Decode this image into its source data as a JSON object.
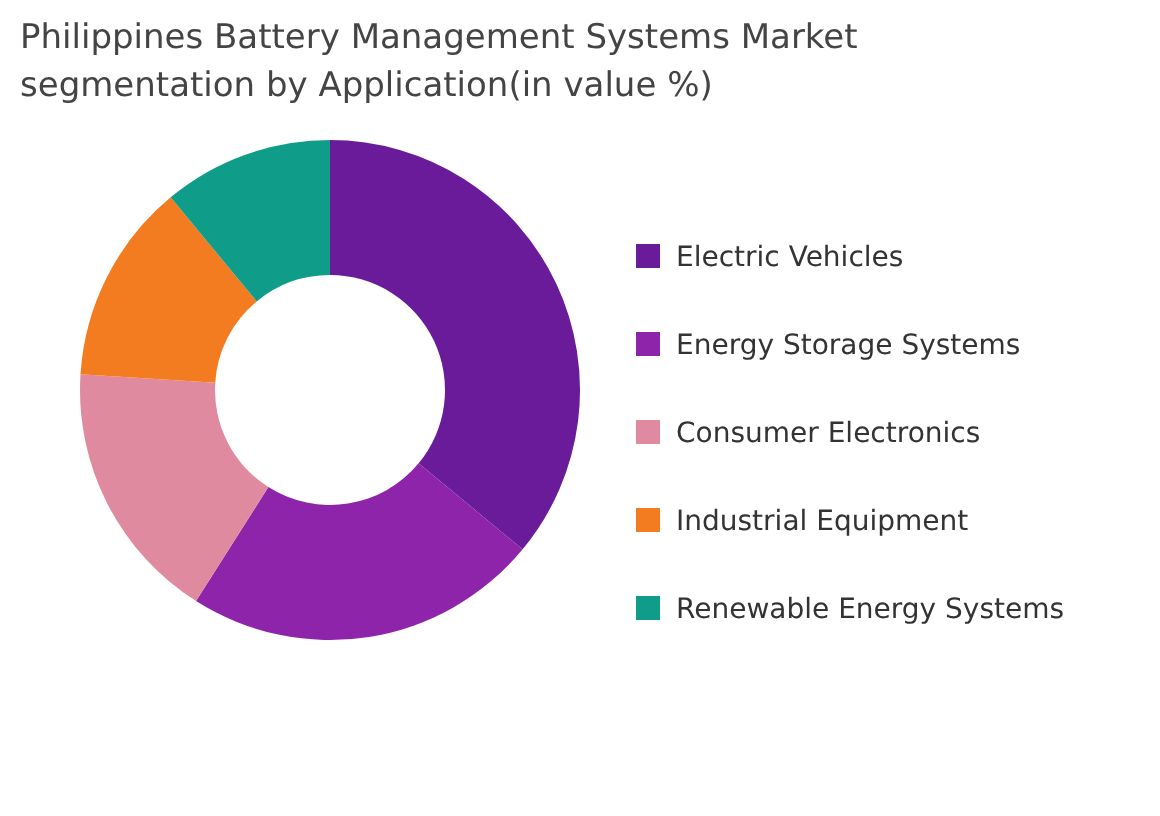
{
  "chart_data": {
    "type": "donut",
    "title": "Philippines Battery Management Systems Market segmentation by Application(in value %)",
    "categories": [
      "Electric Vehicles",
      "Energy Storage Systems",
      "Consumer Electronics",
      "Industrial Equipment",
      "Renewable Energy Systems"
    ],
    "values": [
      36,
      23,
      17,
      13,
      11
    ],
    "colors": [
      "#6a1b9a",
      "#8e24aa",
      "#e08aa0",
      "#f47c20",
      "#0f9d8a"
    ],
    "legend": "right"
  }
}
